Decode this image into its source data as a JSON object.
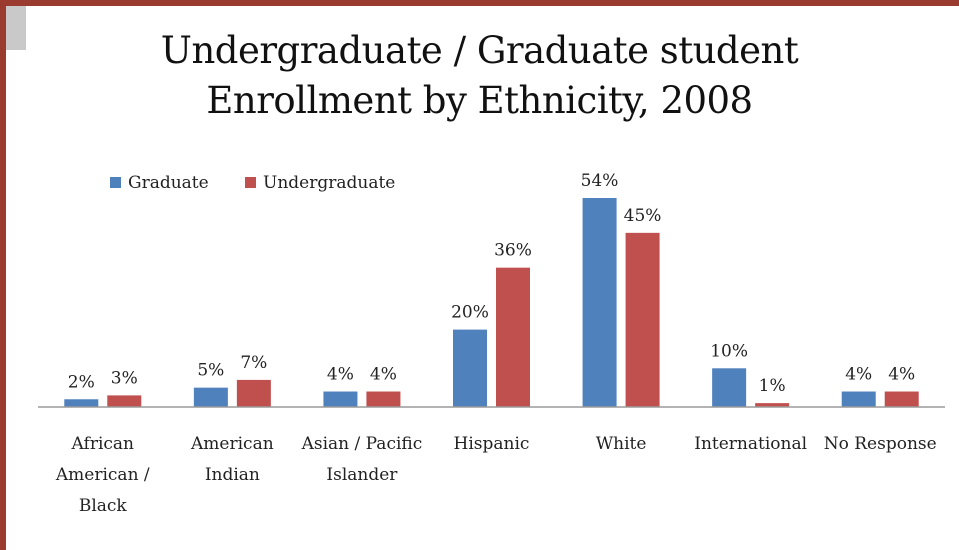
{
  "colors": {
    "graduate": "#4f81bd",
    "undergraduate": "#c0504d",
    "frame": "#9b3b30"
  },
  "chart_data": {
    "type": "bar",
    "title_lines": [
      "Undergraduate / Graduate student",
      "Enrollment by Ethnicity, 2008"
    ],
    "categories": [
      [
        "African",
        "American /",
        "Black"
      ],
      [
        "American",
        "Indian"
      ],
      [
        "Asian / Pacific",
        "Islander"
      ],
      [
        "Hispanic"
      ],
      [
        "White"
      ],
      [
        "International"
      ],
      [
        "No Response"
      ]
    ],
    "series": [
      {
        "name": "Graduate",
        "values": [
          2,
          5,
          4,
          20,
          54,
          10,
          4
        ],
        "labels": [
          "2%",
          "5%",
          "4%",
          "20%",
          "54%",
          "10%",
          "4%"
        ]
      },
      {
        "name": "Undergraduate",
        "values": [
          3,
          7,
          4,
          36,
          45,
          1,
          4
        ],
        "labels": [
          "3%",
          "7%",
          "4%",
          "36%",
          "45%",
          "1%",
          "4%"
        ]
      }
    ],
    "ylim": [
      0,
      60
    ],
    "grid": false,
    "legend": "top-left",
    "xlabel": "",
    "ylabel": ""
  }
}
